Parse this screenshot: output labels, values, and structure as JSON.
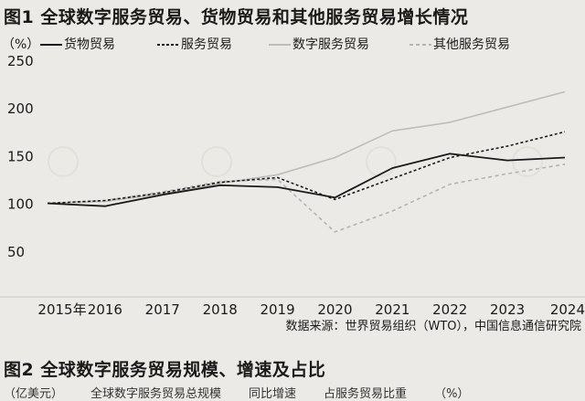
{
  "figure1": {
    "title": "图1 全球数字服务贸易、货物贸易和其他服务贸易增长情况",
    "unit": "（%）",
    "source": "数据来源：世界贸易组织（WTO），中国信息通信研究院"
  },
  "figure2": {
    "title": "图2 全球数字服务贸易规模、增速及占比",
    "legend": [
      "（亿美元）",
      "全球数字服务贸易总规模",
      "同比增速",
      "占服务贸易比重",
      "（%）"
    ]
  },
  "chart_data": {
    "type": "line",
    "title": "图1 全球数字服务贸易、货物贸易和其他服务贸易增长情况",
    "ylabel": "（%）",
    "xlabel": "",
    "ylim": [
      0,
      250
    ],
    "yticks": [
      "50",
      "100",
      "150",
      "200",
      "250"
    ],
    "categories": [
      "2015年",
      "2016",
      "2017",
      "2018",
      "2019",
      "2020",
      "2021",
      "2022",
      "2023",
      "2024"
    ],
    "grid": false,
    "legend_position": "top",
    "series": [
      {
        "name": "货物贸易",
        "style": "solid",
        "color": "#1a1a1a",
        "values": [
          100,
          97,
          109,
          119,
          117,
          106,
          137,
          152,
          145,
          148
        ]
      },
      {
        "name": "服务贸易",
        "style": "dotted",
        "color": "#1a1a1a",
        "values": [
          100,
          103,
          111,
          122,
          127,
          104,
          126,
          148,
          160,
          175
        ]
      },
      {
        "name": "数字服务贸易",
        "style": "solid",
        "color": "#bdbdbd",
        "values": [
          100,
          102,
          110,
          121,
          130,
          148,
          176,
          185,
          201,
          217
        ]
      },
      {
        "name": "其他服务贸易",
        "style": "dashed",
        "color": "#b3b3b3",
        "values": [
          100,
          103,
          112,
          123,
          125,
          70,
          92,
          120,
          131,
          141
        ]
      }
    ]
  }
}
